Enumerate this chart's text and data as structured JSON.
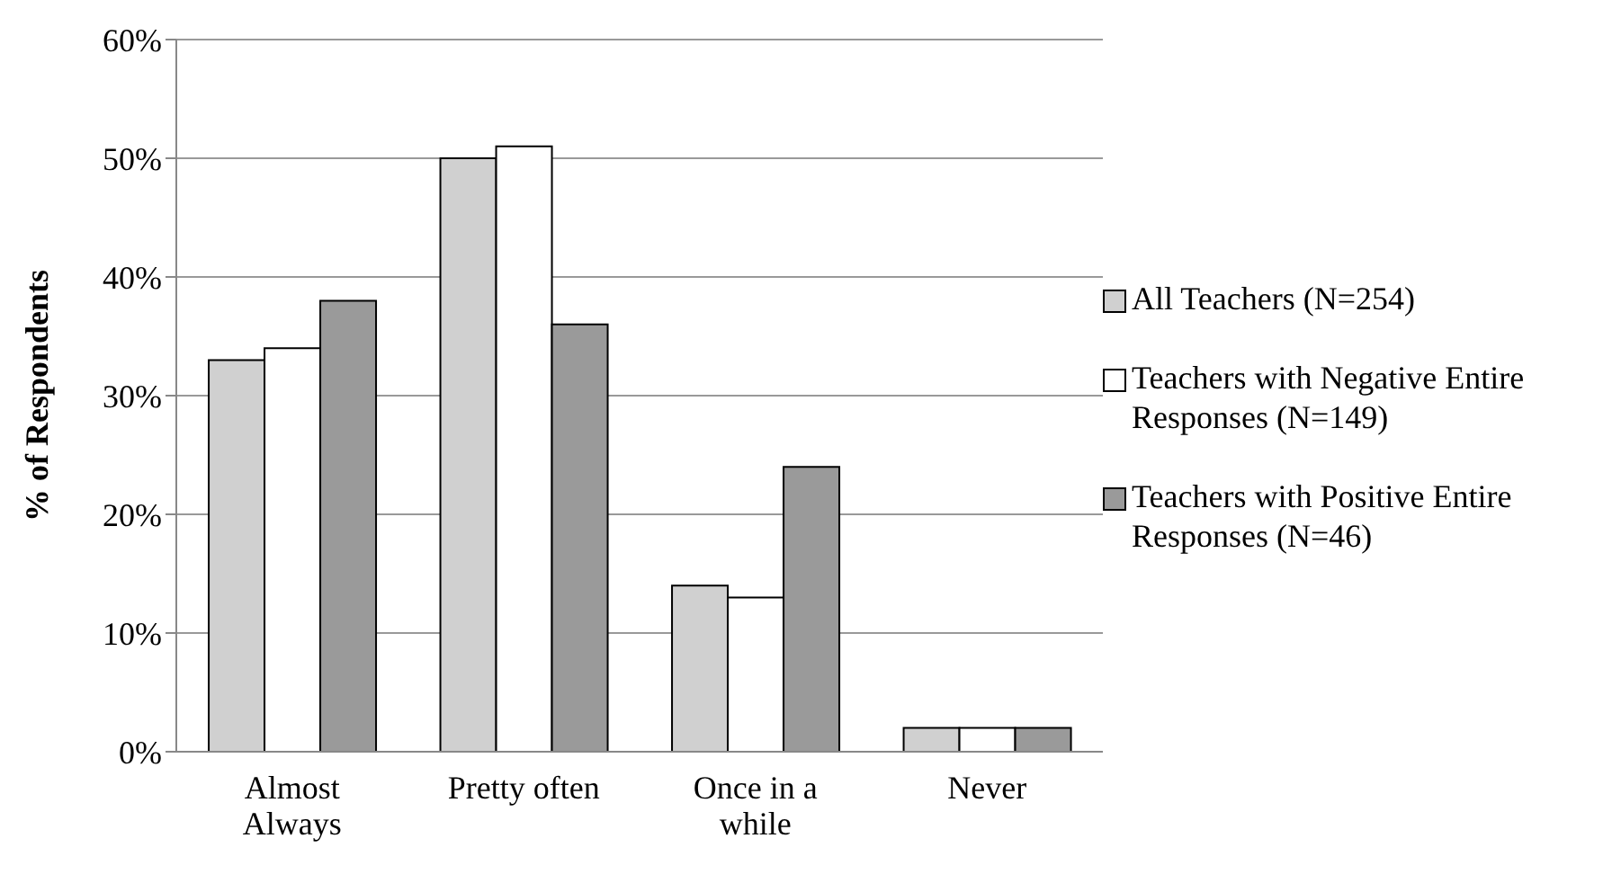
{
  "chart_data": {
    "type": "bar",
    "ylabel": "% of Respondents",
    "categories": [
      "Almost Always",
      "Pretty often",
      "Once in a while",
      "Never"
    ],
    "series": [
      {
        "name": "All Teachers (N=254)",
        "color": "#d0d0d0",
        "values": [
          33,
          50,
          14,
          2
        ]
      },
      {
        "name": "Teachers with Negative Entire Responses (N=149)",
        "color": "#ffffff",
        "values": [
          34,
          51,
          13,
          2
        ]
      },
      {
        "name": "Teachers with Positive Entire Responses (N=46)",
        "color": "#9a9a9a",
        "values": [
          38,
          36,
          24,
          2
        ]
      }
    ],
    "ylim": [
      0,
      60
    ],
    "yticks": [
      {
        "value": 0,
        "label": "0%"
      },
      {
        "value": 10,
        "label": "10%"
      },
      {
        "value": 20,
        "label": "20%"
      },
      {
        "value": 30,
        "label": "30%"
      },
      {
        "value": 40,
        "label": "40%"
      },
      {
        "value": 50,
        "label": "50%"
      },
      {
        "value": 60,
        "label": "60%"
      }
    ],
    "grid": "y",
    "legend": "right"
  }
}
